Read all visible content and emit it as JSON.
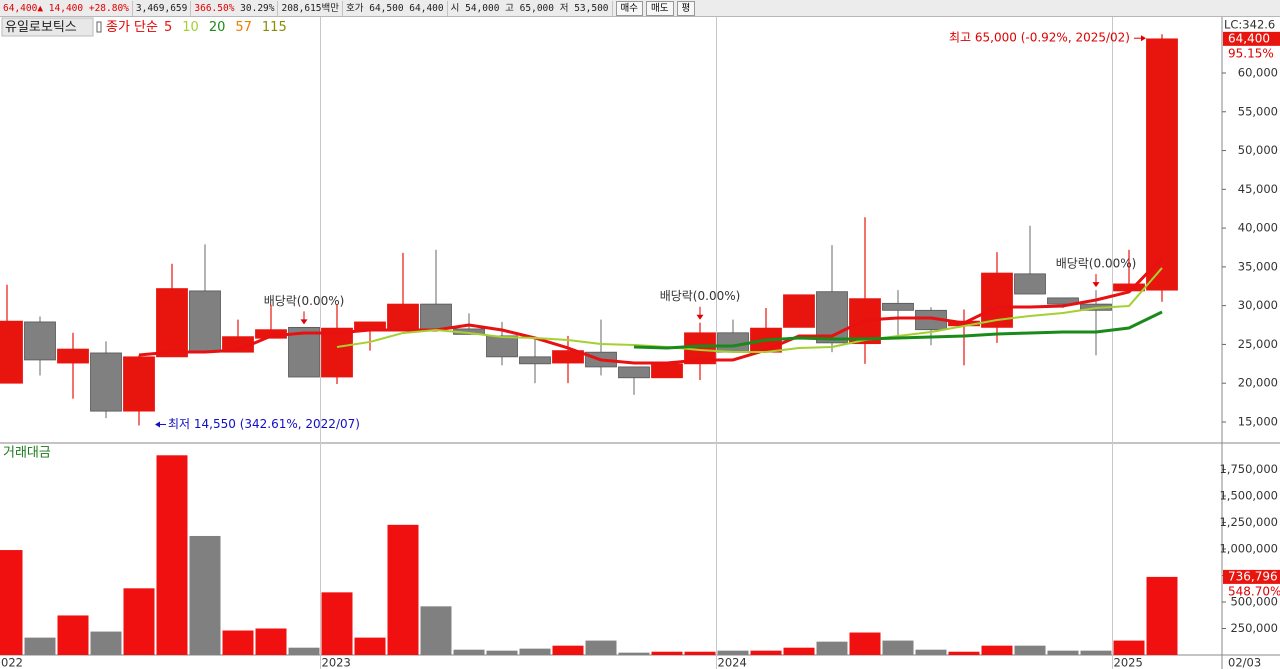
{
  "header": {
    "price": "64,400▲",
    "change": "14,400",
    "rate": "+28.80%",
    "volume": "3,469,659",
    "ratio1": "366.50%",
    "ratio2": "30.29%",
    "amount": "208,615백만",
    "quote_label": "호가",
    "ask": "64,500",
    "bid": "64,400",
    "open_label": "시",
    "open": "54,000",
    "high_label": "고",
    "high": "65,000",
    "low_label": "저",
    "low": "53,500",
    "buttons": [
      "매수",
      "매도",
      "평"
    ]
  },
  "chart_data": [
    {
      "type": "candlestick",
      "title": "유일로보틱스",
      "legend_label": "종가 단순",
      "categories": [
        "022",
        null,
        null,
        null,
        null,
        null,
        null,
        null,
        null,
        null,
        "2023",
        null,
        null,
        null,
        null,
        null,
        null,
        null,
        null,
        null,
        null,
        null,
        "2024",
        null,
        null,
        null,
        null,
        null,
        null,
        null,
        null,
        null,
        null,
        null,
        "2025",
        null
      ],
      "open": [
        20000,
        27900,
        22600,
        23900,
        16400,
        23400,
        31900,
        24000,
        25800,
        27200,
        20800,
        26900,
        27000,
        30200,
        27000,
        26100,
        23400,
        22600,
        24000,
        22100,
        20700,
        22500,
        26500,
        24000,
        27200,
        31800,
        25100,
        30300,
        29400,
        27400,
        27200,
        34100,
        31000,
        30200,
        31900,
        32000
      ],
      "high": [
        32700,
        28600,
        26500,
        25400,
        23600,
        35400,
        37900,
        28200,
        30100,
        27200,
        30100,
        27900,
        36800,
        37200,
        29000,
        27900,
        25600,
        26100,
        28200,
        22100,
        22500,
        27800,
        28200,
        29700,
        31400,
        37800,
        41400,
        32000,
        29800,
        29500,
        36900,
        40300,
        31000,
        32000,
        37200,
        65000
      ],
      "low": [
        20000,
        21000,
        18000,
        15500,
        14550,
        23400,
        24000,
        24000,
        25800,
        20800,
        19900,
        24200,
        27000,
        27000,
        26300,
        22300,
        20000,
        20000,
        21000,
        18500,
        20700,
        20400,
        24000,
        24000,
        27200,
        24000,
        22500,
        26200,
        24900,
        22300,
        25200,
        31500,
        29700,
        23600,
        31900,
        30500
      ],
      "close": [
        28000,
        23000,
        24400,
        16400,
        23400,
        32200,
        24000,
        26000,
        26900,
        20800,
        27100,
        27900,
        30200,
        27000,
        26300,
        23400,
        22500,
        24200,
        22100,
        20700,
        22500,
        26500,
        24000,
        27100,
        31400,
        25200,
        30900,
        29400,
        26900,
        28000,
        34200,
        31500,
        30200,
        29400,
        32800,
        64400
      ],
      "up_color": "#e8150e",
      "down_color": "#808080",
      "series": [
        {
          "name": "5",
          "color": "#e81010",
          "values": [
            null,
            null,
            null,
            null,
            23640,
            24030,
            24030,
            24280,
            26090,
            26480,
            26480,
            26860,
            26860,
            26860,
            27510,
            26860,
            25830,
            24540,
            23000,
            22610,
            22610,
            23000,
            23000,
            24280,
            26090,
            26090,
            28150,
            28410,
            28410,
            27770,
            29830,
            29830,
            29960,
            30730,
            31770,
            36150
          ]
        },
        {
          "name": "10",
          "color": "#a4d030",
          "values": [
            null,
            null,
            null,
            null,
            null,
            null,
            null,
            null,
            null,
            null,
            24670,
            25320,
            26480,
            26860,
            26480,
            25960,
            25830,
            25570,
            25060,
            24930,
            24670,
            24280,
            24030,
            24030,
            24540,
            24670,
            25570,
            26090,
            26600,
            27380,
            28150,
            28670,
            29050,
            29700,
            29960,
            34860
          ]
        },
        {
          "name": "20",
          "color": "#1a8a1a",
          "values": [
            null,
            null,
            null,
            null,
            null,
            null,
            null,
            null,
            null,
            null,
            null,
            null,
            null,
            null,
            null,
            null,
            null,
            null,
            null,
            24670,
            24540,
            24800,
            24800,
            25570,
            25830,
            25700,
            25700,
            25830,
            25960,
            26090,
            26350,
            26480,
            26600,
            26600,
            27120,
            29180
          ]
        },
        {
          "name": "57",
          "color": "#f07c00",
          "values": [
            null,
            null,
            null,
            null,
            null,
            null,
            null,
            null,
            null,
            null,
            null,
            null,
            null,
            null,
            null,
            null,
            null,
            null,
            null,
            null,
            null,
            null,
            null,
            null,
            null,
            null,
            null,
            null,
            null,
            null,
            null,
            null,
            null,
            null,
            null,
            null
          ]
        },
        {
          "name": "115",
          "color": "#8c8c00",
          "values": [
            null,
            null,
            null,
            null,
            null,
            null,
            null,
            null,
            null,
            null,
            null,
            null,
            null,
            null,
            null,
            null,
            null,
            null,
            null,
            null,
            null,
            null,
            null,
            null,
            null,
            null,
            null,
            null,
            null,
            null,
            null,
            null,
            null,
            null,
            null,
            null
          ]
        }
      ],
      "events": [
        null,
        null,
        null,
        null,
        null,
        null,
        null,
        null,
        null,
        "배당락(0.00%)",
        null,
        null,
        null,
        null,
        null,
        null,
        null,
        null,
        null,
        null,
        null,
        "배당락(0.00%)",
        null,
        null,
        null,
        null,
        null,
        null,
        null,
        null,
        null,
        null,
        null,
        "배당락(0.00%)",
        null,
        null
      ],
      "high_note": "최고 65,000 (-0.92%, 2025/02)",
      "low_note": "최저 14,550 (342.61%, 2022/07)",
      "ylim": [
        12290,
        67090
      ],
      "yticks": [
        {
          "value": 15000,
          "label": "15,000"
        },
        {
          "value": 20000,
          "label": "20,000"
        },
        {
          "value": 25000,
          "label": "25,000"
        },
        {
          "value": 30000,
          "label": "30,000"
        },
        {
          "value": 35000,
          "label": "35,000"
        },
        {
          "value": 40000,
          "label": "40,000"
        },
        {
          "value": 45000,
          "label": "45,000"
        },
        {
          "value": 50000,
          "label": "50,000"
        },
        {
          "value": 55000,
          "label": "55,000"
        },
        {
          "value": 60000,
          "label": "60,000"
        }
      ],
      "lc_label": "LC:342.6",
      "current_label": "64,400",
      "current_change": "95.15%",
      "date_label": "02/03"
    },
    {
      "type": "bar",
      "title": "거래대금",
      "values": [
        990000,
        164000,
        373000,
        221000,
        629000,
        1884000,
        1123000,
        231000,
        250000,
        69000,
        591000,
        164000,
        1228000,
        459000,
        50000,
        41000,
        60000,
        88000,
        136000,
        22000,
        31000,
        31000,
        41000,
        41000,
        69000,
        126000,
        212000,
        136000,
        50000,
        31000,
        88000,
        88000,
        41000,
        41000,
        136000,
        736796
      ],
      "ylim": [
        0,
        2000000
      ],
      "yticks": [
        {
          "value": 250000,
          "label": "250,000"
        },
        {
          "value": 500000,
          "label": "500,000"
        },
        {
          "value": 750000,
          "label": "750,000"
        },
        {
          "value": 1000000,
          "label": "1,000,000"
        },
        {
          "value": 1250000,
          "label": "1,250,000"
        },
        {
          "value": 1500000,
          "label": "1,500,000"
        },
        {
          "value": 1750000,
          "label": "1,750,000"
        }
      ],
      "current_label": "736,796",
      "current_change": "548.70%"
    }
  ]
}
